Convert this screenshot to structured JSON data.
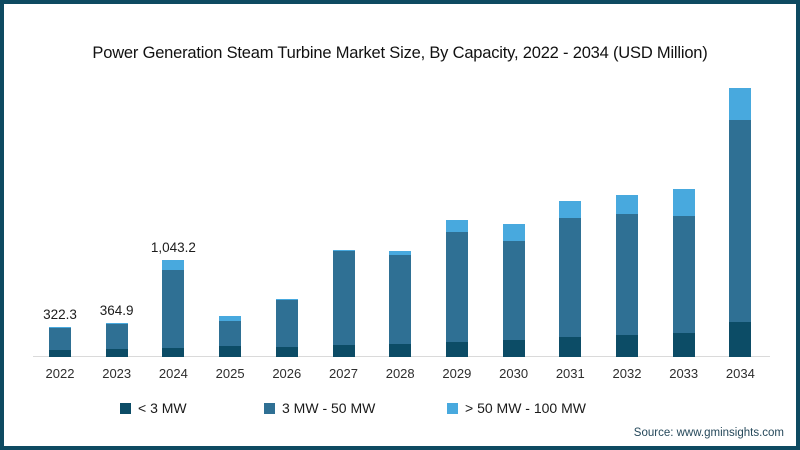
{
  "page": {
    "source": "Source: www.gminsights.com",
    "colors": {
      "frame_border": "#0e4a61",
      "axis_line": "#dadada",
      "title_text": "#111111",
      "source_text": "#25485a"
    }
  },
  "chart_data": {
    "type": "bar",
    "stacked": true,
    "title": "Power Generation Steam Turbine Market Size, By Capacity, 2022 - 2034 (USD Million)",
    "xlabel": "",
    "ylabel": "USD Million",
    "ylim": [
      0,
      3085
    ],
    "grid": false,
    "legend_position": "bottom",
    "categories": [
      "2022",
      "2023",
      "2024",
      "2025",
      "2026",
      "2027",
      "2028",
      "2029",
      "2030",
      "2031",
      "2032",
      "2033",
      "2034"
    ],
    "series": [
      {
        "name": "< 3 MW",
        "color": "#0c4c66",
        "values": [
          78.1,
          89.5,
          101.3,
          114.9,
          110.7,
          125.7,
          143.9,
          161.2,
          186.9,
          215.1,
          240.6,
          258.1,
          376.2
        ]
      },
      {
        "name": "3 MW - 50 MW",
        "color": "#2f7094",
        "values": [
          233.7,
          264.5,
          835.1,
          272.3,
          501.9,
          1014.6,
          952.5,
          1182.6,
          1059.9,
          1279.2,
          1300.6,
          1254.6,
          2168.4
        ]
      },
      {
        "name": "> 50 MW - 100 MW",
        "color": "#48a9de",
        "values": [
          10.5,
          10.9,
          106.8,
          50.4,
          11.2,
          14.3,
          43.1,
          125.6,
          187.1,
          179.4,
          196.9,
          297.6,
          351.5
        ]
      }
    ],
    "totals": [
      322.3,
      364.9,
      1043.2,
      437.6,
      623.8,
      1154.6,
      1139.5,
      1469.4,
      1433.9,
      1673.7,
      1738.1,
      1810.3,
      2896.1
    ],
    "bar_labels": [
      "322.3",
      "364.9",
      "1,043.2",
      "",
      "",
      "",
      "",
      "",
      "",
      "",
      "",
      "",
      ""
    ]
  }
}
